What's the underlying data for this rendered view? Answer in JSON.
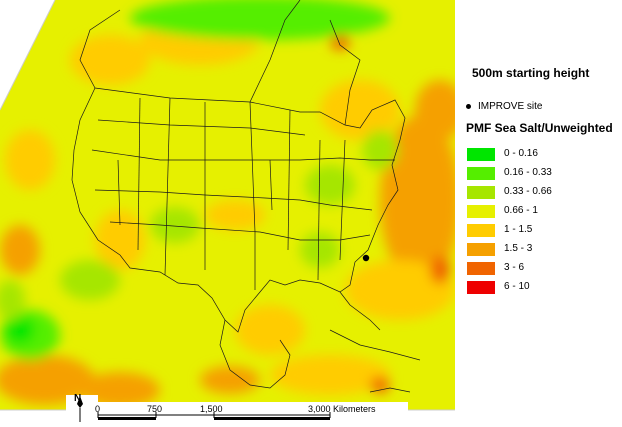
{
  "legend": {
    "heading": "500m starting height",
    "site_marker_label": "IMPROVE site",
    "title": "PMF Sea Salt/Unweighted",
    "classes": [
      {
        "label": "0 - 0.16",
        "color": "#00e600"
      },
      {
        "label": "0.16 - 0.33",
        "color": "#55ee00"
      },
      {
        "label": "0.33 - 0.66",
        "color": "#a6e600"
      },
      {
        "label": "0.66 - 1",
        "color": "#e6f000"
      },
      {
        "label": "1 - 1.5",
        "color": "#ffcc00"
      },
      {
        "label": "1.5 - 3",
        "color": "#f5a000"
      },
      {
        "label": "3 - 6",
        "color": "#f06400"
      },
      {
        "label": "6 - 10",
        "color": "#ee0000"
      }
    ]
  },
  "scalebar": {
    "north_label": "N",
    "ticks": [
      "0",
      "750",
      "1,500",
      "3,000 Kilometers"
    ]
  },
  "colors": {
    "base_field": "#e6f000",
    "boundary": "#1a1a1a",
    "site_marker": "#000000"
  }
}
